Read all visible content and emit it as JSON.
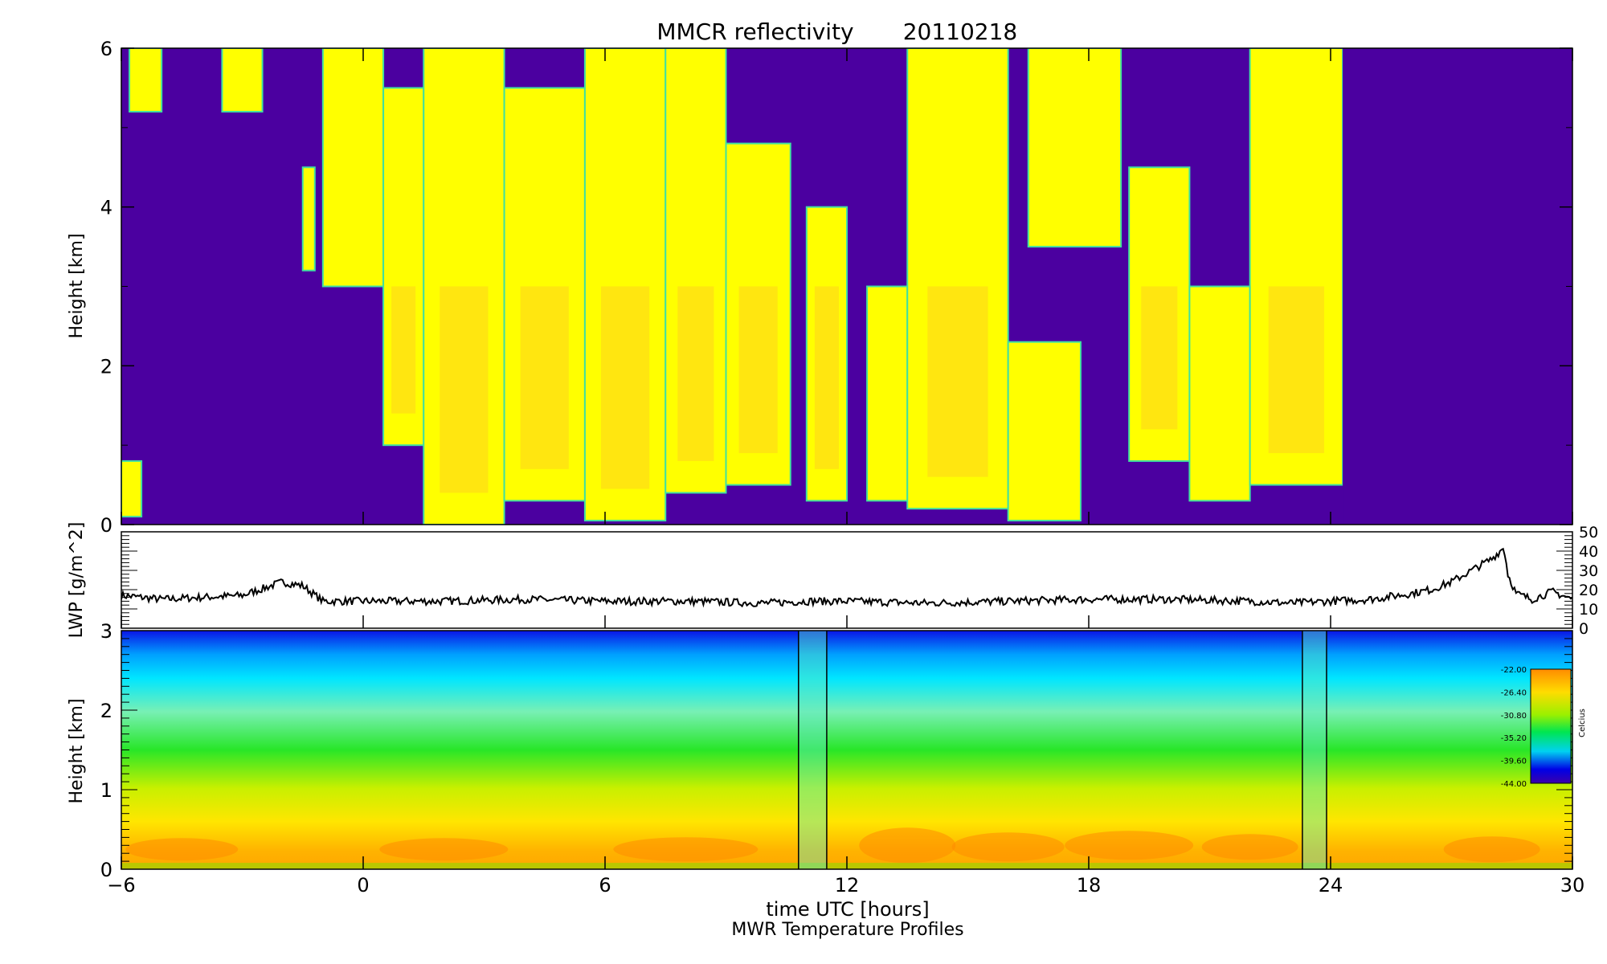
{
  "title": "MMCR reflectivity",
  "date": "20110218",
  "chart_data": [
    {
      "type": "heatmap",
      "panel": "reflectivity",
      "ylabel": "Height [km]",
      "xlim": [
        -6,
        30
      ],
      "ylim": [
        0,
        6
      ],
      "yticks": [
        "0",
        "2",
        "4",
        "6"
      ],
      "background_color": "#4b00a0",
      "cloud_color": "#ffff00",
      "cloud_core_color": "#ffd21e",
      "data_end_hour": 24.3,
      "cloud_columns": [
        {
          "x0": -6.0,
          "x1": -5.5,
          "top": 0.8,
          "bottom": 0.1
        },
        {
          "x0": -5.8,
          "x1": -5.0,
          "top": 6.0,
          "bottom": 5.2
        },
        {
          "x0": -3.5,
          "x1": -2.5,
          "top": 6.0,
          "bottom": 5.2
        },
        {
          "x0": -1.5,
          "x1": -1.2,
          "top": 4.5,
          "bottom": 3.2
        },
        {
          "x0": -1.0,
          "x1": 0.5,
          "top": 6.0,
          "bottom": 3.0
        },
        {
          "x0": 0.5,
          "x1": 1.5,
          "top": 5.5,
          "bottom": 1.0
        },
        {
          "x0": 1.5,
          "x1": 3.5,
          "top": 6.0,
          "bottom": 0.0
        },
        {
          "x0": 3.5,
          "x1": 5.5,
          "top": 5.5,
          "bottom": 0.3
        },
        {
          "x0": 5.5,
          "x1": 7.5,
          "top": 6.0,
          "bottom": 0.05
        },
        {
          "x0": 7.5,
          "x1": 9.0,
          "top": 6.0,
          "bottom": 0.4
        },
        {
          "x0": 9.0,
          "x1": 10.6,
          "top": 4.8,
          "bottom": 0.5
        },
        {
          "x0": 11.0,
          "x1": 12.0,
          "top": 4.0,
          "bottom": 0.3
        },
        {
          "x0": 12.5,
          "x1": 13.5,
          "top": 3.0,
          "bottom": 0.3
        },
        {
          "x0": 13.5,
          "x1": 16.0,
          "top": 6.0,
          "bottom": 0.2
        },
        {
          "x0": 16.0,
          "x1": 17.8,
          "top": 2.3,
          "bottom": 0.05
        },
        {
          "x0": 16.5,
          "x1": 18.8,
          "top": 6.0,
          "bottom": 3.5
        },
        {
          "x0": 19.0,
          "x1": 20.5,
          "top": 4.5,
          "bottom": 0.8
        },
        {
          "x0": 20.5,
          "x1": 22.0,
          "top": 3.0,
          "bottom": 0.3
        },
        {
          "x0": 22.0,
          "x1": 24.3,
          "top": 6.0,
          "bottom": 0.5
        }
      ]
    },
    {
      "type": "line",
      "panel": "lwp",
      "ylabel": "LWP [g/m^2]",
      "xlim": [
        -6,
        30
      ],
      "ylim": [
        0,
        50
      ],
      "yticks": [
        "0",
        "10",
        "20",
        "30",
        "40",
        "50"
      ],
      "line_color": "#000000",
      "x": [
        -6,
        -5,
        -4,
        -3,
        -2,
        -1.5,
        -1,
        0,
        2,
        4,
        6,
        8,
        10,
        11,
        12,
        14,
        16,
        18,
        20,
        22,
        23,
        24,
        25,
        26,
        26.5,
        27,
        27.5,
        28,
        28.3,
        28.4,
        28.6,
        29,
        29.5,
        30
      ],
      "y": [
        17,
        15,
        16,
        17,
        24,
        22,
        14,
        14,
        14,
        15,
        14,
        14,
        13,
        14,
        14,
        13,
        14,
        15,
        15,
        14,
        13,
        14,
        15,
        18,
        20,
        24,
        30,
        36,
        42,
        28,
        18,
        15,
        19,
        15
      ]
    },
    {
      "type": "heatmap",
      "panel": "temperature",
      "ylabel": "Height [km]",
      "xlabel": "time UTC [hours]",
      "subtitle": "MWR Temperature Profiles",
      "xlim": [
        -6,
        30
      ],
      "ylim": [
        0,
        3
      ],
      "xticks": [
        "−6",
        "0",
        "6",
        "12",
        "18",
        "24",
        "30"
      ],
      "yticks": [
        "0",
        "1",
        "2",
        "3"
      ],
      "colorbar": {
        "label": "Celcius",
        "ticks": [
          "-22.00",
          "-26.40",
          "-30.80",
          "-35.20",
          "-39.60",
          "-44.00"
        ],
        "colors": [
          "#ff8c00",
          "#ffdc00",
          "#9bf000",
          "#00e650",
          "#00d2f0",
          "#0000e6",
          "#3c00aa"
        ]
      },
      "gap_lines_hours": [
        10.8,
        11.5,
        23.3,
        23.9
      ]
    }
  ]
}
